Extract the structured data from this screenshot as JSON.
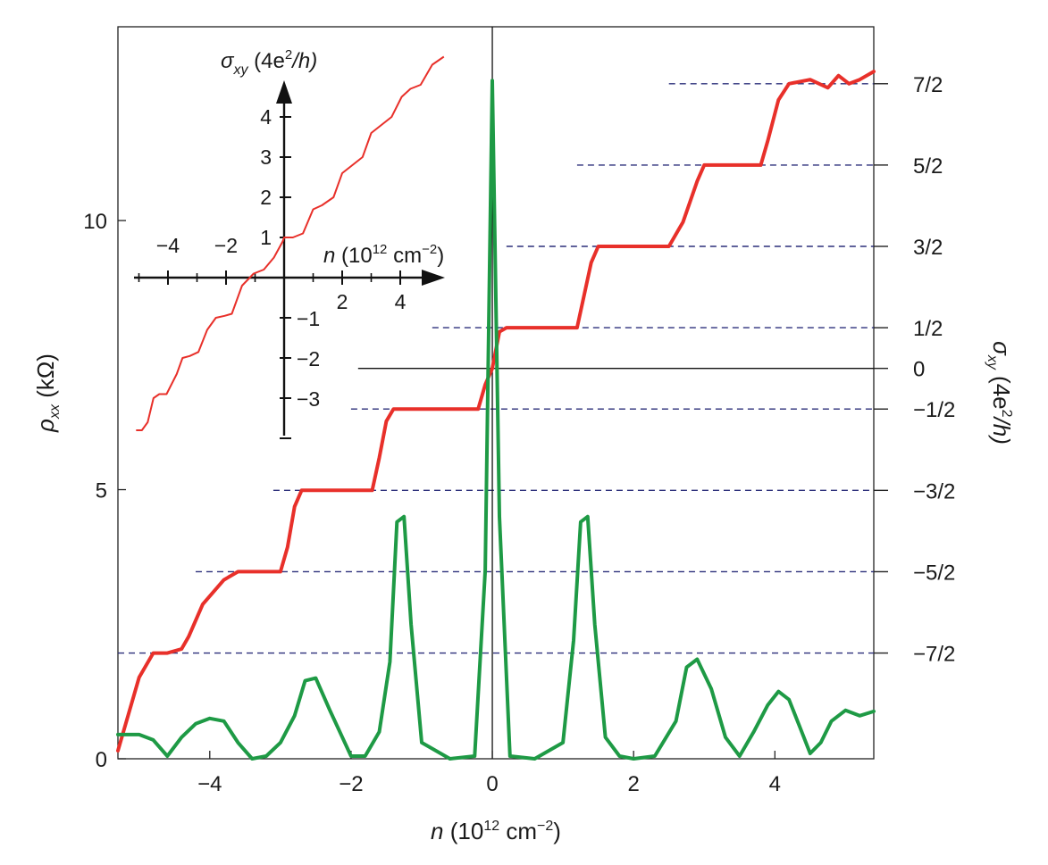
{
  "chart_data": {
    "type": "line",
    "colors": {
      "sigma_xy": "#e8302a",
      "rho_xx": "#1e9a45",
      "plateau_guides": "#2b2f7a",
      "axes": "#222222"
    },
    "main": {
      "xlabel_parts": [
        "n",
        " (10",
        "12",
        " cm",
        "−2",
        ")"
      ],
      "ylabel_left_parts": [
        "ρ",
        "xx",
        " (kΩ)"
      ],
      "ylabel_right_parts": [
        "σ",
        "xy",
        " (4e",
        "2",
        "/h)"
      ],
      "xlim": [
        -5.3,
        5.4
      ],
      "ylim_left": [
        0,
        13.6
      ],
      "ylim_right": [
        -4.8,
        4.2
      ],
      "x_ticks": [
        -4,
        -2,
        0,
        2,
        4
      ],
      "x_tick_labels": [
        "−4",
        "−2",
        "0",
        "2",
        "4"
      ],
      "y_left_ticks": [
        0,
        5,
        10
      ],
      "y_left_tick_labels": [
        "0",
        "5",
        "10"
      ],
      "y_right_ticks": [
        3.5,
        2.5,
        1.5,
        0.5,
        0,
        -0.5,
        -1.5,
        -2.5,
        -3.5
      ],
      "y_right_tick_labels": [
        "7/2",
        "5/2",
        "3/2",
        "1/2",
        "0",
        "−1/2",
        "−3/2",
        "−5/2",
        "−7/2"
      ],
      "plateau_guides": [
        {
          "value": 3.5,
          "x_start": 2.5
        },
        {
          "value": 2.5,
          "x_start": 1.2
        },
        {
          "value": 1.5,
          "x_start": 0.2
        },
        {
          "value": 0.5,
          "x_start": -0.85
        },
        {
          "value": -0.5,
          "x_start": -2.0
        },
        {
          "value": -1.5,
          "x_start": -3.1
        },
        {
          "value": -2.5,
          "x_start": -4.2
        },
        {
          "value": -3.5,
          "x_start": -5.3
        }
      ],
      "zero_line_x_start": -1.9,
      "series": [
        {
          "name": "sigma_xy",
          "axis": "right",
          "x": [
            -5.3,
            -5.0,
            -4.8,
            -4.6,
            -4.4,
            -4.3,
            -4.1,
            -3.8,
            -3.6,
            -3.5,
            -3.2,
            -3.0,
            -2.9,
            -2.8,
            -2.7,
            -2.3,
            -1.7,
            -1.6,
            -1.5,
            -1.4,
            -0.2,
            -0.1,
            0.0,
            0.1,
            0.2,
            1.2,
            1.3,
            1.4,
            1.5,
            1.6,
            2.5,
            2.7,
            2.9,
            3.0,
            3.1,
            3.8,
            3.9,
            4.05,
            4.2,
            4.5,
            4.75,
            4.9,
            5.05,
            5.2,
            5.4
          ],
          "y": [
            -4.7,
            -3.8,
            -3.5,
            -3.5,
            -3.45,
            -3.3,
            -2.9,
            -2.6,
            -2.5,
            -2.5,
            -2.5,
            -2.5,
            -2.2,
            -1.7,
            -1.5,
            -1.5,
            -1.5,
            -1.1,
            -0.65,
            -0.5,
            -0.5,
            -0.2,
            0.0,
            0.45,
            0.5,
            0.5,
            0.9,
            1.3,
            1.5,
            1.5,
            1.5,
            1.8,
            2.3,
            2.5,
            2.5,
            2.5,
            2.8,
            3.3,
            3.5,
            3.55,
            3.45,
            3.6,
            3.5,
            3.55,
            3.65
          ]
        },
        {
          "name": "rho_xx",
          "axis": "left",
          "x": [
            -5.3,
            -5.0,
            -4.8,
            -4.6,
            -4.4,
            -4.2,
            -4.0,
            -3.8,
            -3.6,
            -3.4,
            -3.2,
            -3.0,
            -2.8,
            -2.65,
            -2.5,
            -2.3,
            -2.0,
            -1.8,
            -1.6,
            -1.45,
            -1.35,
            -1.25,
            -1.15,
            -1.0,
            -0.6,
            -0.25,
            -0.1,
            0.0,
            0.1,
            0.25,
            0.6,
            1.0,
            1.15,
            1.25,
            1.35,
            1.45,
            1.6,
            1.8,
            2.0,
            2.3,
            2.6,
            2.75,
            2.9,
            3.1,
            3.3,
            3.5,
            3.7,
            3.9,
            4.05,
            4.2,
            4.35,
            4.5,
            4.65,
            4.8,
            5.0,
            5.2,
            5.4
          ],
          "y": [
            0.45,
            0.45,
            0.35,
            0.05,
            0.4,
            0.65,
            0.75,
            0.7,
            0.3,
            0.0,
            0.05,
            0.3,
            0.8,
            1.45,
            1.5,
            0.9,
            0.05,
            0.05,
            0.5,
            1.8,
            4.4,
            4.5,
            2.5,
            0.3,
            0.0,
            0.05,
            3.5,
            12.6,
            4.5,
            0.05,
            0.0,
            0.3,
            2.2,
            4.4,
            4.5,
            2.5,
            0.4,
            0.05,
            0.0,
            0.05,
            0.7,
            1.7,
            1.85,
            1.3,
            0.4,
            0.05,
            0.5,
            1.0,
            1.25,
            1.1,
            0.6,
            0.1,
            0.3,
            0.7,
            0.9,
            0.8,
            0.88
          ]
        }
      ]
    },
    "inset": {
      "title_parts": [
        "σ",
        "xy",
        " (4e",
        "2",
        "/h)"
      ],
      "xlabel_parts": [
        "n",
        " (10",
        "12",
        " cm",
        "−2",
        ")"
      ],
      "x_ticks_top": [
        -4,
        -2
      ],
      "x_tick_labels_top": [
        "−4",
        "−2"
      ],
      "x_ticks_bottom": [
        2,
        4
      ],
      "x_tick_labels_bottom": [
        "2",
        "4"
      ],
      "y_ticks_positive": [
        1,
        2,
        3,
        4
      ],
      "y_tick_labels_positive": [
        "1",
        "2",
        "3",
        "4"
      ],
      "y_ticks_negative": [
        -1,
        -2,
        -3
      ],
      "y_tick_labels_negative": [
        "−1",
        "−2",
        "−3"
      ],
      "series": [
        {
          "name": "inset_sigma_xy",
          "x": [
            -5.1,
            -4.9,
            -4.7,
            -4.5,
            -4.3,
            -4.05,
            -3.7,
            -3.5,
            -3.25,
            -2.95,
            -2.65,
            -2.35,
            -2.05,
            -1.8,
            -1.45,
            -1.05,
            -0.7,
            -0.35,
            -0.05,
            0.0,
            0.3,
            0.65,
            1.0,
            1.3,
            1.7,
            2.0,
            2.35,
            2.7,
            3.0,
            3.35,
            3.7,
            4.05,
            4.35,
            4.7,
            5.1,
            5.5
          ],
          "y": [
            -3.8,
            -3.8,
            -3.6,
            -3.0,
            -2.9,
            -2.9,
            -2.4,
            -2.0,
            -1.95,
            -1.85,
            -1.3,
            -1.0,
            -0.95,
            -0.9,
            -0.2,
            0.1,
            0.2,
            0.5,
            0.9,
            1.0,
            1.0,
            1.1,
            1.7,
            1.8,
            2.0,
            2.6,
            2.8,
            3.0,
            3.6,
            3.8,
            4.0,
            4.5,
            4.7,
            4.8,
            5.3,
            5.5
          ]
        }
      ]
    }
  }
}
